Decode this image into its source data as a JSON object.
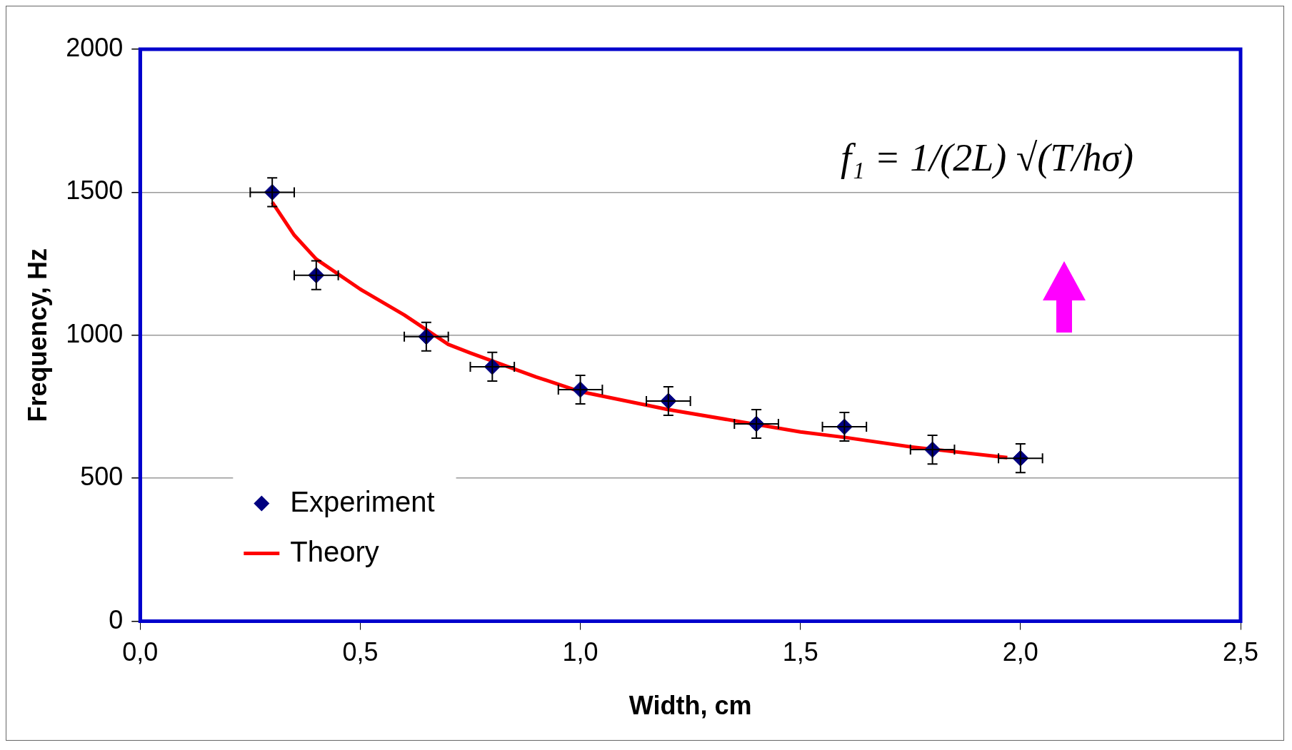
{
  "chart_data": {
    "type": "scatter",
    "xlabel": "Width, cm",
    "ylabel": "Frequency, Hz",
    "xlim": [
      0,
      2.5
    ],
    "xticks": [
      {
        "value": 0,
        "label": "0,0"
      },
      {
        "value": 0.5,
        "label": "0,5"
      },
      {
        "value": 1,
        "label": "1,0"
      },
      {
        "value": 1.5,
        "label": "1,5"
      },
      {
        "value": 2,
        "label": "2,0"
      },
      {
        "value": 2.5,
        "label": "2,5"
      }
    ],
    "ylim": [
      0,
      2000
    ],
    "yticks": [
      0,
      500,
      1000,
      1500,
      2000
    ],
    "grid": "y",
    "legend": "bottom left",
    "annotations": [
      "f₁ = 1/(2L) √(T/hσ)"
    ],
    "series": [
      {
        "name": "Experiment",
        "type": "scatter",
        "color": "#000080",
        "marker": "diamond",
        "x": [
          0.3,
          0.4,
          0.65,
          0.8,
          1.0,
          1.2,
          1.4,
          1.6,
          1.8,
          2.0
        ],
        "values": [
          1500,
          1210,
          995,
          890,
          810,
          770,
          690,
          680,
          600,
          570
        ],
        "errors": [
          50,
          50,
          50,
          50,
          50,
          50,
          50,
          50,
          50,
          50
        ],
        "xerrors": [
          0.05,
          0.05,
          0.05,
          0.05,
          0.05,
          0.05,
          0.05,
          0.05,
          0.05,
          0.05
        ]
      },
      {
        "name": "Theory",
        "type": "line",
        "color": "#ff0000",
        "marker": "none",
        "x": [
          0.3,
          0.35,
          0.4,
          0.5,
          0.6,
          0.7,
          0.75,
          0.9,
          1.0,
          1.2,
          1.5,
          1.6,
          1.75,
          1.97
        ],
        "values": [
          1465,
          1350,
          1266,
          1161,
          1071,
          968,
          938,
          854,
          803,
          740,
          662,
          643,
          610,
          572
        ]
      }
    ]
  }
}
